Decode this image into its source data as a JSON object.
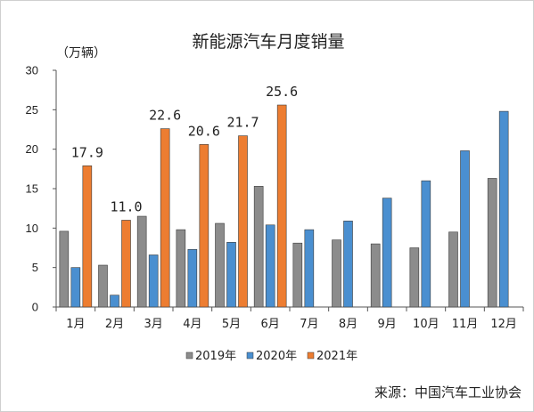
{
  "chart_data": {
    "type": "bar",
    "title": "新能源汽车月度销量",
    "unit_label": "（万辆）",
    "ylim": [
      0,
      30
    ],
    "yticks": [
      0,
      5,
      10,
      15,
      20,
      25,
      30
    ],
    "grid": false,
    "legend_position": "bottom",
    "categories": [
      "1月",
      "2月",
      "3月",
      "4月",
      "5月",
      "6月",
      "7月",
      "8月",
      "9月",
      "10月",
      "11月",
      "12月"
    ],
    "series": [
      {
        "name": "2019年",
        "color": "#8c8c8c",
        "values": [
          9.6,
          5.3,
          11.5,
          9.8,
          10.6,
          15.3,
          8.1,
          8.5,
          8.0,
          7.5,
          9.5,
          16.3
        ]
      },
      {
        "name": "2020年",
        "color": "#4a8fd0",
        "values": [
          5.0,
          1.5,
          6.6,
          7.3,
          8.2,
          10.4,
          9.8,
          10.9,
          13.8,
          16.0,
          19.8,
          24.8
        ]
      },
      {
        "name": "2021年",
        "color": "#ed7d31",
        "values": [
          17.9,
          11.0,
          22.6,
          20.6,
          21.7,
          25.6,
          null,
          null,
          null,
          null,
          null,
          null
        ]
      }
    ],
    "data_labels": [
      "17.9",
      "11.0",
      "22.6",
      "20.6",
      "21.7",
      "25.6"
    ],
    "source": "来源：中国汽车工业协会"
  }
}
